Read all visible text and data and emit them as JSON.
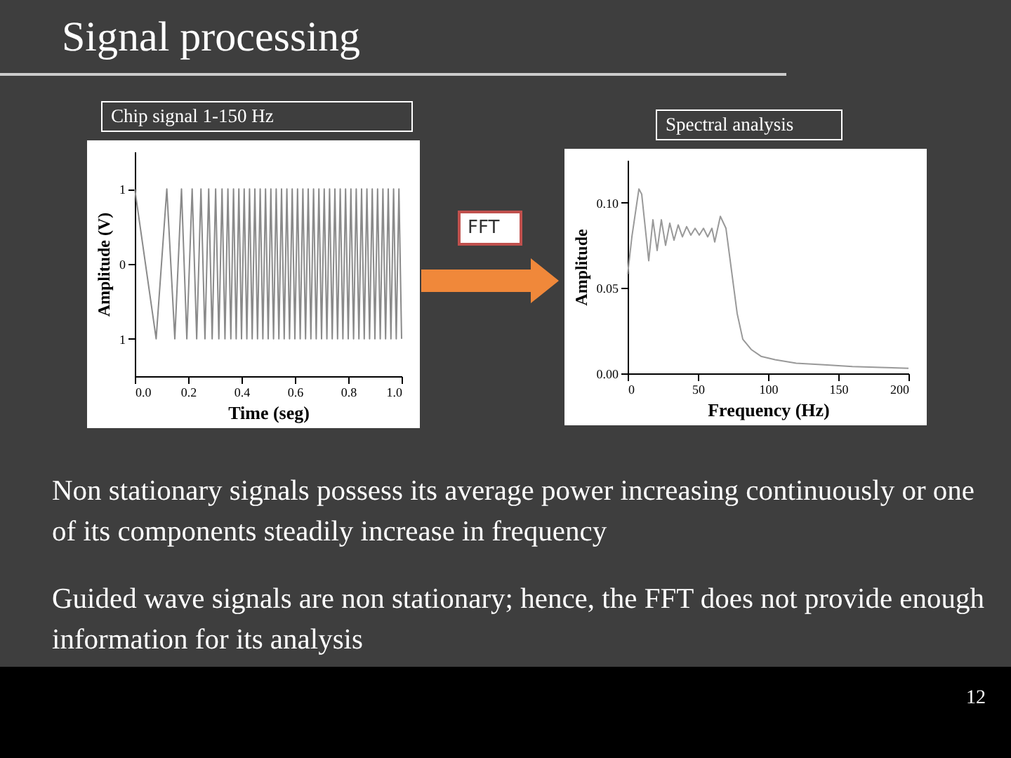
{
  "chart_data": [
    {
      "type": "other",
      "title": "Signal processing",
      "annotations": [
        "FFT",
        "Non stationary signals possess its average power increasing continuously or one of its components steadily increase in frequency",
        "Guided wave signals are non stationary; hence, the FFT does not provide enough information for its analysis",
        "12"
      ]
    },
    {
      "type": "line",
      "title": "Chip signal 1-150 Hz",
      "xlabel": "Time (seg)",
      "ylabel": "Amplitude (V)",
      "x": [
        0,
        0.08,
        0.12,
        0.15,
        0.175,
        0.195,
        0.215,
        0.232,
        0.248,
        0.263,
        0.277,
        0.29,
        0.303,
        0.315,
        0.327,
        0.338,
        0.349,
        0.36,
        0.37,
        0.38,
        0.39,
        0.4,
        0.41,
        0.42,
        0.43,
        0.44,
        0.45,
        0.46,
        0.47,
        0.48,
        0.49,
        0.5,
        0.51,
        0.52,
        0.53,
        0.54,
        0.55,
        0.56,
        0.57,
        0.58,
        0.59,
        0.6,
        0.61,
        0.62,
        0.63,
        0.64,
        0.65,
        0.66,
        0.67,
        0.68,
        0.69,
        0.7,
        0.71,
        0.72,
        0.73,
        0.74,
        0.75,
        0.76,
        0.77,
        0.78,
        0.79,
        0.8,
        0.81,
        0.82,
        0.83,
        0.84,
        0.85,
        0.86,
        0.87,
        0.88,
        0.89,
        0.9,
        0.91,
        0.92,
        0.93,
        0.94,
        0.95,
        0.96,
        0.97,
        0.98,
        0.99,
        1.0
      ],
      "series": [
        {
          "color": "#8a8a8a",
          "values": [
            1,
            -1,
            1,
            -1,
            1,
            -1,
            1,
            -1,
            1,
            -1,
            1,
            -1,
            1,
            -1,
            1,
            -1,
            1,
            -1,
            1,
            -1,
            1,
            -1,
            1,
            -1,
            1,
            -1,
            1,
            -1,
            1,
            -1,
            1,
            -1,
            1,
            -1,
            1,
            -1,
            1,
            -1,
            1,
            -1,
            1,
            -1,
            1,
            -1,
            1,
            -1,
            1,
            -1,
            1,
            -1,
            1,
            -1,
            1,
            -1,
            1,
            -1,
            1,
            -1,
            1,
            -1,
            1,
            -1,
            1,
            -1,
            1,
            -1,
            1,
            -1,
            1,
            -1,
            1,
            -1,
            1,
            -1,
            1,
            -1,
            1,
            -1,
            1,
            -1,
            1,
            -1
          ]
        }
      ],
      "xlim": [
        0,
        1
      ],
      "xticks": [
        {
          "value": 0,
          "label": "0.0"
        },
        0.2,
        0.4,
        0.6,
        0.8,
        {
          "value": 1,
          "label": "1.0"
        }
      ],
      "ylim": [
        -1.5,
        1.5
      ],
      "yticks": [
        {
          "value": -1,
          "label": "1"
        },
        0,
        1
      ]
    },
    {
      "type": "line",
      "title": "Spectral analysis",
      "xlabel": "Frequency (Hz)",
      "ylabel": "Amplitude",
      "x": [
        0,
        3,
        8,
        10,
        15,
        18,
        21,
        24,
        27,
        30,
        33,
        36,
        39,
        42,
        45,
        48,
        51,
        54,
        57,
        60,
        62,
        66,
        70,
        74,
        78,
        82,
        88,
        95,
        105,
        120,
        140,
        160,
        180,
        200
      ],
      "series": [
        {
          "color": "#999999",
          "values": [
            0.058,
            0.08,
            0.108,
            0.105,
            0.066,
            0.09,
            0.072,
            0.09,
            0.075,
            0.088,
            0.078,
            0.087,
            0.08,
            0.086,
            0.081,
            0.085,
            0.081,
            0.085,
            0.08,
            0.085,
            0.077,
            0.092,
            0.085,
            0.06,
            0.035,
            0.02,
            0.014,
            0.01,
            0.008,
            0.006,
            0.005,
            0.004,
            0.0035,
            0.003
          ]
        }
      ],
      "xlim": [
        0,
        200
      ],
      "xticks": [
        0,
        50,
        100,
        150,
        200
      ],
      "ylim": [
        0,
        0.125
      ],
      "yticks": [
        {
          "value": 0,
          "label": "0.00"
        },
        {
          "value": 0.05,
          "label": "0.05"
        },
        {
          "value": 0.1,
          "label": "0.10"
        }
      ]
    }
  ]
}
